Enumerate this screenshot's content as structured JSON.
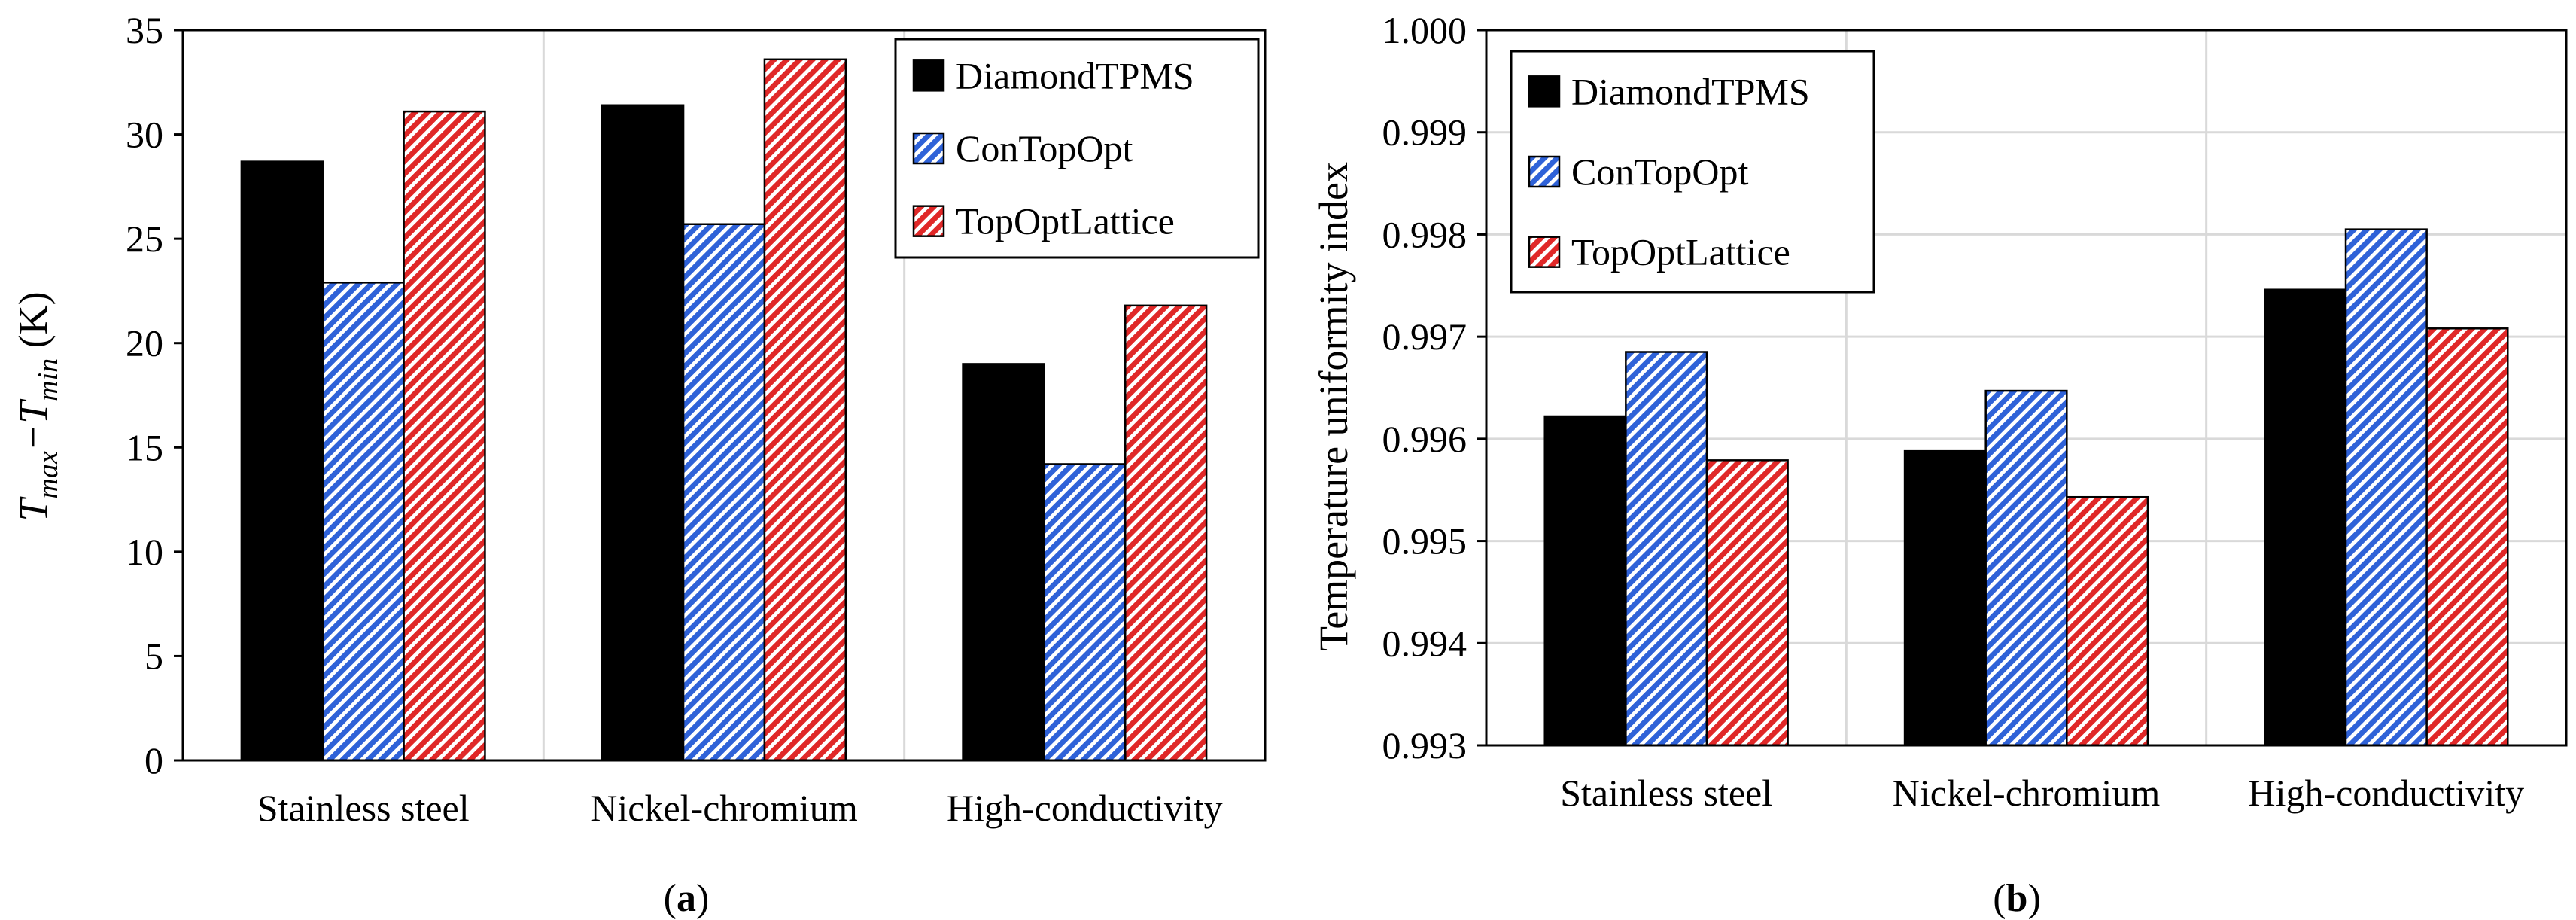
{
  "chart_data": [
    {
      "type": "bar",
      "panel_label": "a",
      "title": "",
      "xlabel": "",
      "ylabel": "T_max−T_min (K)",
      "ylabel_parts": [
        "T",
        "max",
        "−T",
        "min",
        " (K)"
      ],
      "ylim": [
        0,
        35
      ],
      "yticks": [
        0,
        5,
        10,
        15,
        20,
        25,
        30,
        35
      ],
      "ytick_labels": [
        "0",
        "5",
        "10",
        "15",
        "20",
        "25",
        "30",
        "35"
      ],
      "grid": "vertical category separators",
      "legend_position": "top-right",
      "categories": [
        "Stainless steel",
        "Nickel-chromium",
        "High-conductivity"
      ],
      "series": [
        {
          "name": "DiamondTPMS",
          "values": [
            28.7,
            31.4,
            19.0
          ],
          "fill": "#000000"
        },
        {
          "name": "ConTopOpt",
          "values": [
            22.9,
            25.7,
            14.2
          ],
          "fill": "#2f62d8"
        },
        {
          "name": "TopOptLattice",
          "values": [
            31.1,
            33.6,
            21.8
          ],
          "fill": "#e02828"
        }
      ]
    },
    {
      "type": "bar",
      "panel_label": "b",
      "title": "",
      "xlabel": "",
      "ylabel": "Temperature uniformity index",
      "ylim": [
        0.993,
        1.0
      ],
      "yticks": [
        0.993,
        0.994,
        0.995,
        0.996,
        0.997,
        0.998,
        0.999,
        1.0
      ],
      "ytick_labels": [
        "0.993",
        "0.994",
        "0.995",
        "0.996",
        "0.997",
        "0.998",
        "0.999",
        "1.000"
      ],
      "grid": "horizontal and vertical",
      "legend_position": "top-left",
      "categories": [
        "Stainless steel",
        "Nickel-chromium",
        "High-conductivity"
      ],
      "series": [
        {
          "name": "DiamondTPMS",
          "values": [
            0.99622,
            0.99588,
            0.99746
          ],
          "fill": "#000000"
        },
        {
          "name": "ConTopOpt",
          "values": [
            0.99685,
            0.99647,
            0.99805
          ],
          "fill": "#2f62d8"
        },
        {
          "name": "TopOptLattice",
          "values": [
            0.99579,
            0.99543,
            0.99708
          ],
          "fill": "#e02828"
        }
      ]
    }
  ],
  "colors": {
    "hatch_blue": "#2f62d8",
    "hatch_red": "#e02828",
    "solid": "#000000",
    "grid": "#d9d9d9"
  }
}
